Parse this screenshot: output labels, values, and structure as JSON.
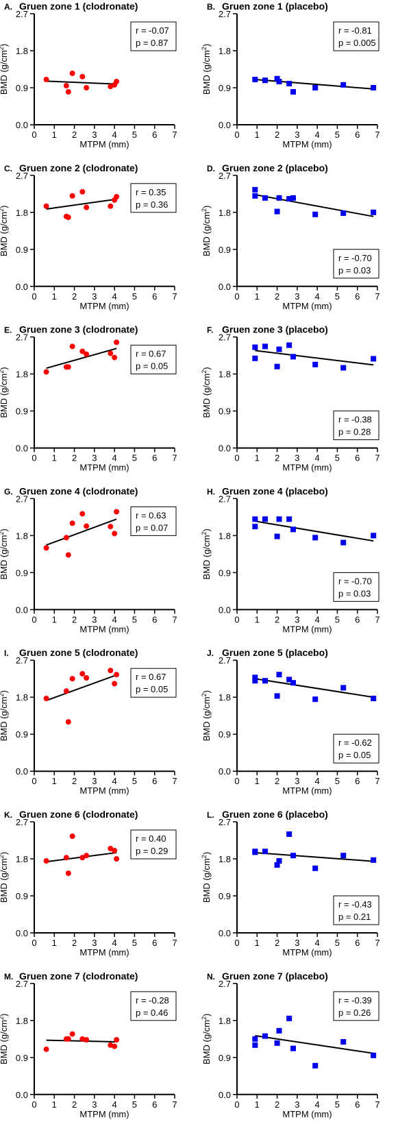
{
  "figure": {
    "xlabel": "MTPM (mm)",
    "ylabel_main": "BMD (g/cm",
    "ylabel_sup": "2",
    "ylabel_close": ")",
    "colors": {
      "clodronate": "#ff0000",
      "placebo": "#0000ee",
      "fit": "#000000"
    }
  },
  "chart_data": [
    {
      "letter": "A.",
      "title": "Gruen zone 1 (clodronate)",
      "type": "scatter",
      "group": "clodronate",
      "r": "r = -0.07",
      "p": "p = 0.87",
      "stats_pos": "top-right",
      "xlim": [
        0,
        7
      ],
      "ylim": [
        0,
        2.7
      ],
      "xticks": [
        "0",
        "1",
        "2",
        "3",
        "4",
        "5",
        "6",
        "7"
      ],
      "yticks": [
        "0.0",
        "0.9",
        "1.8",
        "2.7"
      ],
      "x": [
        0.6,
        1.6,
        1.7,
        1.9,
        2.4,
        2.6,
        3.8,
        4.0,
        4.1
      ],
      "y": [
        1.1,
        0.95,
        0.8,
        1.25,
        1.17,
        0.9,
        0.93,
        0.97,
        1.05
      ],
      "fit": [
        [
          0.6,
          1.06
        ],
        [
          4.1,
          0.99
        ]
      ]
    },
    {
      "letter": "B.",
      "title": "Gruen zone 1 (placebo)",
      "type": "scatter",
      "group": "placebo",
      "r": "r = -0.81",
      "p": "p = 0.005",
      "stats_pos": "top-right",
      "xlim": [
        0,
        7
      ],
      "ylim": [
        0,
        2.7
      ],
      "xticks": [
        "0",
        "1",
        "2",
        "3",
        "4",
        "5",
        "6",
        "7"
      ],
      "yticks": [
        "0.0",
        "0.9",
        "1.8",
        "2.7"
      ],
      "x": [
        0.9,
        1.4,
        2.0,
        2.1,
        2.6,
        2.8,
        3.9,
        5.3,
        6.8
      ],
      "y": [
        1.1,
        1.08,
        1.12,
        1.05,
        1.0,
        0.8,
        0.9,
        0.97,
        0.9
      ],
      "fit": [
        [
          0.9,
          1.1
        ],
        [
          6.8,
          0.87
        ]
      ]
    },
    {
      "letter": "C.",
      "title": "Gruen zone 2 (clodronate)",
      "type": "scatter",
      "group": "clodronate",
      "r": "r = 0.35",
      "p": "p = 0.36",
      "stats_pos": "top-right",
      "xlim": [
        0,
        7
      ],
      "ylim": [
        0,
        2.7
      ],
      "xticks": [
        "0",
        "1",
        "2",
        "3",
        "4",
        "5",
        "6",
        "7"
      ],
      "yticks": [
        "0.0",
        "0.9",
        "1.8",
        "2.7"
      ],
      "x": [
        0.6,
        1.6,
        1.7,
        1.9,
        2.4,
        2.6,
        3.8,
        4.0,
        4.1
      ],
      "y": [
        1.95,
        1.7,
        1.68,
        2.2,
        2.3,
        1.92,
        1.95,
        2.1,
        2.18
      ],
      "fit": [
        [
          0.6,
          1.88
        ],
        [
          4.1,
          2.12
        ]
      ]
    },
    {
      "letter": "D.",
      "title": "Gruen zone 2 (placebo)",
      "type": "scatter",
      "group": "placebo",
      "r": "r = -0.70",
      "p": "p = 0.03",
      "stats_pos": "bottom-right",
      "xlim": [
        0,
        7
      ],
      "ylim": [
        0,
        2.7
      ],
      "xticks": [
        "0",
        "1",
        "2",
        "3",
        "4",
        "5",
        "6",
        "7"
      ],
      "yticks": [
        "0.0",
        "0.9",
        "1.8",
        "2.7"
      ],
      "x": [
        0.9,
        0.9,
        1.4,
        2.0,
        2.1,
        2.6,
        2.8,
        3.9,
        5.3,
        6.8
      ],
      "y": [
        2.35,
        2.2,
        2.15,
        1.82,
        2.15,
        2.13,
        2.15,
        1.75,
        1.78,
        1.8
      ],
      "fit": [
        [
          0.9,
          2.23
        ],
        [
          6.8,
          1.7
        ]
      ]
    },
    {
      "letter": "E.",
      "title": "Gruen zone 3 (clodronate)",
      "type": "scatter",
      "group": "clodronate",
      "r": "r = 0.67",
      "p": "p = 0.05",
      "stats_pos": "top-right",
      "xlim": [
        0,
        7
      ],
      "ylim": [
        0,
        2.7
      ],
      "xticks": [
        "0",
        "1",
        "2",
        "3",
        "4",
        "5",
        "6",
        "7"
      ],
      "yticks": [
        "0.0",
        "0.9",
        "1.8",
        "2.7"
      ],
      "x": [
        0.6,
        1.6,
        1.7,
        1.9,
        2.4,
        2.6,
        3.8,
        4.0,
        4.1
      ],
      "y": [
        1.85,
        1.97,
        1.97,
        2.47,
        2.35,
        2.28,
        2.3,
        2.2,
        2.57
      ],
      "fit": [
        [
          0.6,
          1.94
        ],
        [
          4.1,
          2.42
        ]
      ]
    },
    {
      "letter": "F.",
      "title": "Gruen zone 3 (placebo)",
      "type": "scatter",
      "group": "placebo",
      "r": "r = -0.38",
      "p": "p = 0.28",
      "stats_pos": "bottom-right",
      "xlim": [
        0,
        7
      ],
      "ylim": [
        0,
        2.7
      ],
      "xticks": [
        "0",
        "1",
        "2",
        "3",
        "4",
        "5",
        "6",
        "7"
      ],
      "yticks": [
        "0.0",
        "0.9",
        "1.8",
        "2.7"
      ],
      "x": [
        0.9,
        0.9,
        1.4,
        2.0,
        2.1,
        2.6,
        2.8,
        3.9,
        5.3,
        6.8
      ],
      "y": [
        2.45,
        2.18,
        2.47,
        1.98,
        2.4,
        2.5,
        2.22,
        2.03,
        1.95,
        2.17
      ],
      "fit": [
        [
          0.9,
          2.37
        ],
        [
          6.8,
          2.02
        ]
      ]
    },
    {
      "letter": "G.",
      "title": "Gruen zone 4 (clodronate)",
      "type": "scatter",
      "group": "clodronate",
      "r": "r = 0.63",
      "p": "p = 0.07",
      "stats_pos": "top-right",
      "xlim": [
        0,
        7
      ],
      "ylim": [
        0,
        2.7
      ],
      "xticks": [
        "0",
        "1",
        "2",
        "3",
        "4",
        "5",
        "6",
        "7"
      ],
      "yticks": [
        "0.0",
        "0.9",
        "1.8",
        "2.7"
      ],
      "x": [
        0.6,
        1.6,
        1.7,
        1.9,
        2.4,
        2.6,
        3.8,
        4.0,
        4.1
      ],
      "y": [
        1.5,
        1.75,
        1.33,
        2.1,
        2.33,
        2.03,
        2.02,
        1.85,
        2.38
      ],
      "fit": [
        [
          0.6,
          1.57
        ],
        [
          4.1,
          2.2
        ]
      ]
    },
    {
      "letter": "H.",
      "title": "Gruen zone 4 (placebo)",
      "type": "scatter",
      "group": "placebo",
      "r": "r = -0.70",
      "p": "p = 0.03",
      "stats_pos": "bottom-right",
      "xlim": [
        0,
        7
      ],
      "ylim": [
        0,
        2.7
      ],
      "xticks": [
        "0",
        "1",
        "2",
        "3",
        "4",
        "5",
        "6",
        "7"
      ],
      "yticks": [
        "0.0",
        "0.9",
        "1.8",
        "2.7"
      ],
      "x": [
        0.9,
        0.9,
        1.4,
        2.0,
        2.1,
        2.6,
        2.8,
        3.9,
        5.3,
        6.8
      ],
      "y": [
        2.2,
        2.02,
        2.2,
        1.78,
        2.2,
        2.2,
        1.95,
        1.75,
        1.63,
        1.8
      ],
      "fit": [
        [
          0.9,
          2.15
        ],
        [
          6.8,
          1.67
        ]
      ]
    },
    {
      "letter": "I.",
      "title": "Gruen zone 5 (clodronate)",
      "type": "scatter",
      "group": "clodronate",
      "r": "r = 0.67",
      "p": "p = 0.05",
      "stats_pos": "top-right",
      "xlim": [
        0,
        7
      ],
      "ylim": [
        0,
        2.7
      ],
      "xticks": [
        "0",
        "1",
        "2",
        "3",
        "4",
        "5",
        "6",
        "7"
      ],
      "yticks": [
        "0.0",
        "0.9",
        "1.8",
        "2.7"
      ],
      "x": [
        0.6,
        1.6,
        1.7,
        1.9,
        2.4,
        2.6,
        3.8,
        4.0,
        4.1
      ],
      "y": [
        1.77,
        1.95,
        1.2,
        2.25,
        2.37,
        2.27,
        2.45,
        2.13,
        2.35
      ],
      "fit": [
        [
          0.6,
          1.72
        ],
        [
          4.1,
          2.34
        ]
      ]
    },
    {
      "letter": "J.",
      "title": "Gruen zone 5 (placebo)",
      "type": "scatter",
      "group": "placebo",
      "r": "r = -0.62",
      "p": "p = 0.05",
      "stats_pos": "bottom-right",
      "xlim": [
        0,
        7
      ],
      "ylim": [
        0,
        2.7
      ],
      "xticks": [
        "0",
        "1",
        "2",
        "3",
        "4",
        "5",
        "6",
        "7"
      ],
      "yticks": [
        "0.0",
        "0.9",
        "1.8",
        "2.7"
      ],
      "x": [
        0.9,
        0.9,
        1.4,
        2.0,
        2.1,
        2.6,
        2.8,
        3.9,
        5.3,
        6.8
      ],
      "y": [
        2.28,
        2.2,
        2.2,
        1.83,
        2.35,
        2.23,
        2.15,
        1.75,
        2.03,
        1.77
      ],
      "fit": [
        [
          0.9,
          2.25
        ],
        [
          6.8,
          1.8
        ]
      ]
    },
    {
      "letter": "K.",
      "title": "Gruen zone 6 (clodronate)",
      "type": "scatter",
      "group": "clodronate",
      "r": "r = 0.40",
      "p": "p = 0.29",
      "stats_pos": "top-right",
      "xlim": [
        0,
        7
      ],
      "ylim": [
        0,
        2.7
      ],
      "xticks": [
        "0",
        "1",
        "2",
        "3",
        "4",
        "5",
        "6",
        "7"
      ],
      "yticks": [
        "0.0",
        "0.9",
        "1.8",
        "2.7"
      ],
      "x": [
        0.6,
        1.6,
        1.7,
        1.9,
        2.4,
        2.6,
        3.8,
        4.0,
        4.1
      ],
      "y": [
        1.75,
        1.83,
        1.45,
        2.35,
        1.83,
        1.88,
        2.05,
        2.0,
        1.8
      ],
      "fit": [
        [
          0.6,
          1.73
        ],
        [
          4.1,
          1.95
        ]
      ]
    },
    {
      "letter": "L.",
      "title": "Gruen zone 6 (placebo)",
      "type": "scatter",
      "group": "placebo",
      "r": "r = -0.43",
      "p": "p = 0.21",
      "stats_pos": "bottom-right",
      "xlim": [
        0,
        7
      ],
      "ylim": [
        0,
        2.7
      ],
      "xticks": [
        "0",
        "1",
        "2",
        "3",
        "4",
        "5",
        "6",
        "7"
      ],
      "yticks": [
        "0.0",
        "0.9",
        "1.8",
        "2.7"
      ],
      "x": [
        0.9,
        0.9,
        1.4,
        2.0,
        2.1,
        2.6,
        2.8,
        3.9,
        5.3,
        6.8
      ],
      "y": [
        1.98,
        1.96,
        1.98,
        1.65,
        1.75,
        2.4,
        1.88,
        1.57,
        1.88,
        1.77
      ],
      "fit": [
        [
          0.9,
          1.95
        ],
        [
          6.8,
          1.74
        ]
      ]
    },
    {
      "letter": "M.",
      "title": "Gruen zone 7 (clodronate)",
      "type": "scatter",
      "group": "clodronate",
      "r": "r = -0.28",
      "p": "p = 0.46",
      "stats_pos": "top-right",
      "xlim": [
        0,
        7
      ],
      "ylim": [
        0,
        2.7
      ],
      "xticks": [
        "0",
        "1",
        "2",
        "3",
        "4",
        "5",
        "6",
        "7"
      ],
      "yticks": [
        "0.0",
        "0.9",
        "1.8",
        "2.7"
      ],
      "x": [
        0.6,
        1.6,
        1.7,
        1.9,
        2.4,
        2.6,
        3.8,
        4.0,
        4.1
      ],
      "y": [
        1.1,
        1.35,
        1.35,
        1.47,
        1.35,
        1.33,
        1.2,
        1.17,
        1.33
      ],
      "fit": [
        [
          0.6,
          1.32
        ],
        [
          4.1,
          1.28
        ]
      ]
    },
    {
      "letter": "N.",
      "title": "Gruen zone 7 (placebo)",
      "type": "scatter",
      "group": "placebo",
      "r": "r = -0.39",
      "p": "p = 0.26",
      "stats_pos": "top-right",
      "xlim": [
        0,
        7
      ],
      "ylim": [
        0,
        2.7
      ],
      "xticks": [
        "0",
        "1",
        "2",
        "3",
        "4",
        "5",
        "6",
        "7"
      ],
      "yticks": [
        "0.0",
        "0.9",
        "1.8",
        "2.7"
      ],
      "x": [
        0.9,
        0.9,
        1.4,
        2.0,
        2.1,
        2.6,
        2.8,
        3.9,
        5.3,
        6.8
      ],
      "y": [
        1.35,
        1.2,
        1.42,
        1.25,
        1.55,
        1.85,
        1.12,
        0.7,
        1.28,
        0.95
      ],
      "fit": [
        [
          0.9,
          1.43
        ],
        [
          6.8,
          1.0
        ]
      ]
    }
  ]
}
